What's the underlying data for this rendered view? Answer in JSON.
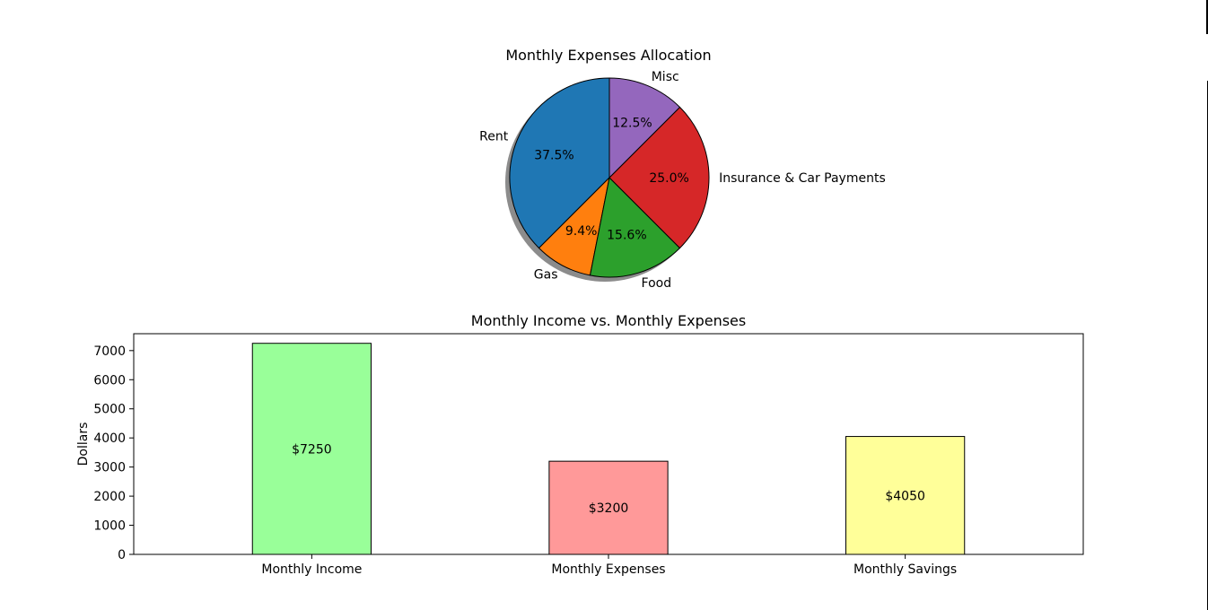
{
  "chart_data": [
    {
      "type": "pie",
      "title": "Monthly Expenses Allocation",
      "labels": [
        "Rent",
        "Gas",
        "Food",
        "Insurance & Car Payments",
        "Misc"
      ],
      "values": [
        37.5,
        9.4,
        15.6,
        25.0,
        12.5
      ],
      "pct_labels": [
        "37.5%",
        "9.4%",
        "15.6%",
        "25.0%",
        "12.5%"
      ],
      "colors": [
        "#1f77b4",
        "#ff7f0e",
        "#2ca02c",
        "#d62728",
        "#9467bd"
      ],
      "start_angle": 90,
      "direction": "counterclockwise",
      "shadow": true
    },
    {
      "type": "bar",
      "title": "Monthly Income vs. Monthly Expenses",
      "categories": [
        "Monthly Income",
        "Monthly Expenses",
        "Monthly Savings"
      ],
      "values": [
        7250,
        3200,
        4050
      ],
      "bar_labels": [
        "$7250",
        "$3200",
        "$4050"
      ],
      "colors": [
        "#99ff99",
        "#ff9999",
        "#ffff99"
      ],
      "ylabel": "Dollars",
      "xlabel": "",
      "ylim": [
        0,
        7580
      ],
      "yticks": [
        0,
        1000,
        2000,
        3000,
        4000,
        5000,
        6000,
        7000
      ],
      "grid": false
    }
  ]
}
